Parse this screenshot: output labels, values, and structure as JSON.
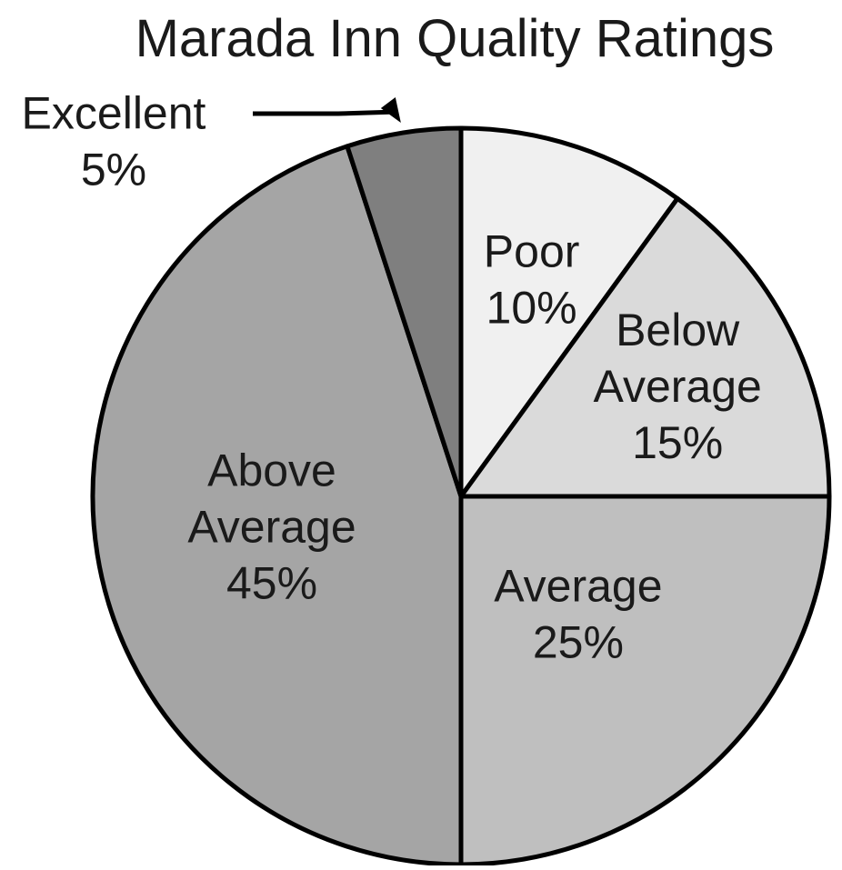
{
  "chart_data": {
    "type": "pie",
    "title": "Marada Inn Quality Ratings",
    "slices": [
      {
        "label_lines": [
          "Poor"
        ],
        "value": 10,
        "value_label": "10%",
        "color": "#f0f0f0"
      },
      {
        "label_lines": [
          "Below",
          "Average"
        ],
        "value": 15,
        "value_label": "15%",
        "color": "#dadada"
      },
      {
        "label_lines": [
          "Average"
        ],
        "value": 25,
        "value_label": "25%",
        "color": "#bfbfbf"
      },
      {
        "label_lines": [
          "Above",
          "Average"
        ],
        "value": 45,
        "value_label": "45%",
        "color": "#a5a5a5"
      },
      {
        "label_lines": [
          "Excellent"
        ],
        "value": 5,
        "value_label": "5%",
        "color": "#7f7f7f"
      }
    ],
    "legend": "none",
    "slice_order": "clockwise from top"
  }
}
